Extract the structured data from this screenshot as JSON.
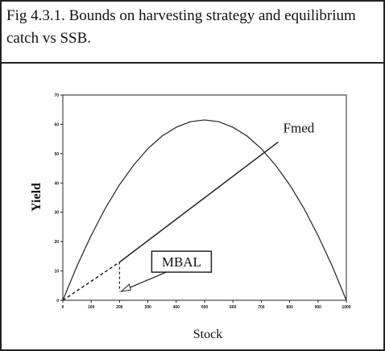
{
  "chart_data": {
    "type": "line",
    "title": "Fig 4.3.1. Bounds on harvesting strategy and equilibrium catch vs SSB.",
    "xlabel": "Stock",
    "ylabel": "Yield",
    "xlim": [
      0,
      1000
    ],
    "ylim": [
      0,
      70
    ],
    "xticks": [
      0,
      100,
      200,
      300,
      400,
      500,
      600,
      700,
      800,
      900,
      1000
    ],
    "yticks": [
      0,
      10,
      20,
      30,
      40,
      50,
      60,
      70
    ],
    "series": [
      {
        "color": "#222",
        "x": [
          0,
          50,
          100,
          150,
          200,
          250,
          300,
          350,
          400,
          450,
          500,
          550,
          600,
          650,
          700,
          750,
          800,
          850,
          900,
          950,
          1000
        ],
        "values": [
          0,
          11.7,
          22.1,
          31.4,
          39.4,
          46.1,
          51.7,
          56.0,
          59.0,
          60.9,
          61.5,
          60.9,
          59.0,
          56.0,
          51.7,
          46.1,
          39.4,
          31.4,
          22.1,
          11.7,
          0
        ]
      },
      {
        "name": "Fmed",
        "color": "#222",
        "x": [
          0,
          200,
          760
        ],
        "values": [
          0,
          13,
          54
        ]
      }
    ],
    "annotations": [
      {
        "text": "MBAL",
        "x": 200,
        "y": 3
      }
    ]
  }
}
